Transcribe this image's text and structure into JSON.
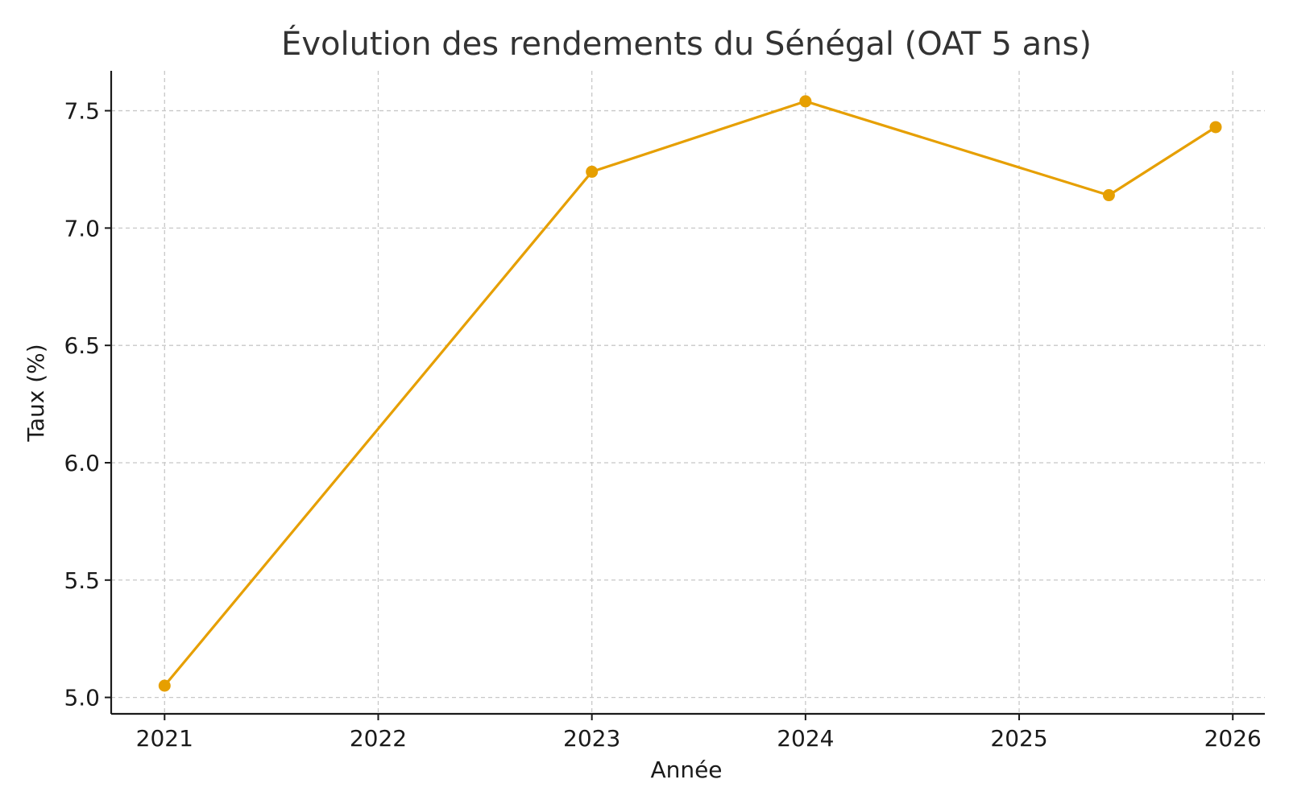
{
  "chart_data": {
    "type": "line",
    "title": "Évolution des rendements du Sénégal (OAT 5 ans)",
    "xlabel": "Année",
    "ylabel": "Taux (%)",
    "x_ticks": [
      "2021",
      "2022",
      "2023",
      "2024",
      "2025",
      "2026"
    ],
    "y_ticks": [
      "5.0",
      "5.5",
      "6.0",
      "6.5",
      "7.0",
      "7.5"
    ],
    "xlim": [
      2020.75,
      2026.15
    ],
    "ylim": [
      4.93,
      7.67
    ],
    "grid": true,
    "series": [
      {
        "color": "#E69F00",
        "x": [
          2021.0,
          2023.0,
          2024.0,
          2025.42,
          2025.92
        ],
        "y": [
          5.05,
          7.24,
          7.54,
          7.14,
          7.43
        ]
      }
    ]
  }
}
